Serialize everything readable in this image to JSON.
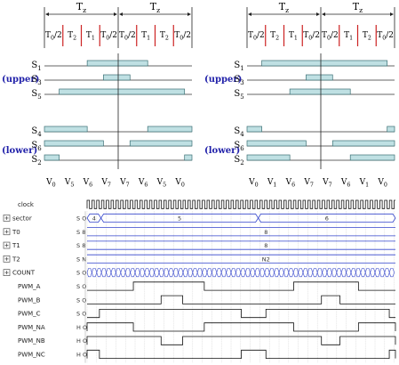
{
  "space_vector": {
    "period_label": "T",
    "period_sub": "z",
    "left": {
      "segments": [
        {
          "main": "T",
          "sub": "0",
          "tail": "/2",
          "red": false
        },
        {
          "main": "T",
          "sub": "2",
          "tail": "",
          "red": false
        },
        {
          "main": "T",
          "sub": "1",
          "tail": "",
          "red": false
        },
        {
          "main": "T",
          "sub": "0",
          "tail": "/2",
          "red": false
        },
        {
          "main": "T",
          "sub": "0",
          "tail": "/2",
          "red": false
        },
        {
          "main": "T",
          "sub": "1",
          "tail": "",
          "red": false
        },
        {
          "main": "T",
          "sub": "2",
          "tail": "",
          "red": false
        },
        {
          "main": "T",
          "sub": "0",
          "tail": "/2",
          "red": false
        }
      ],
      "upper_label": "(upper)",
      "lower_label": "(lower)",
      "upper_signals": [
        {
          "name": "S",
          "sub": "1",
          "high": [
            [
              0.29,
              0.7
            ]
          ]
        },
        {
          "name": "S",
          "sub": "3",
          "high": [
            [
              0.4,
              0.58
            ]
          ]
        },
        {
          "name": "S",
          "sub": "5",
          "high": [
            [
              0.1,
              0.95
            ]
          ]
        }
      ],
      "lower_signals": [
        {
          "name": "S",
          "sub": "4",
          "high": [
            [
              0,
              0.29
            ],
            [
              0.7,
              1
            ]
          ]
        },
        {
          "name": "S",
          "sub": "6",
          "high": [
            [
              0,
              0.4
            ],
            [
              0.58,
              1
            ]
          ]
        },
        {
          "name": "S",
          "sub": "2",
          "high": [
            [
              0,
              0.1
            ],
            [
              0.95,
              1
            ]
          ]
        }
      ],
      "vectors": [
        {
          "m": "V",
          "s": "0"
        },
        {
          "m": "V",
          "s": "5"
        },
        {
          "m": "V",
          "s": "6"
        },
        {
          "m": "V",
          "s": "7"
        },
        {
          "m": "V",
          "s": "7"
        },
        {
          "m": "V",
          "s": "6"
        },
        {
          "m": "V",
          "s": "5"
        },
        {
          "m": "V",
          "s": "0"
        }
      ]
    },
    "right": {
      "segments": [
        {
          "main": "T",
          "sub": "0",
          "tail": "/2",
          "red": false
        },
        {
          "main": "T",
          "sub": "2",
          "tail": "",
          "red": false
        },
        {
          "main": "T",
          "sub": "1",
          "tail": "",
          "red": false
        },
        {
          "main": "T",
          "sub": "0",
          "tail": "/2",
          "red": false
        },
        {
          "main": "T",
          "sub": "0",
          "tail": "/2",
          "red": false
        },
        {
          "main": "T",
          "sub": "1",
          "tail": "",
          "red": false
        },
        {
          "main": "T",
          "sub": "2",
          "tail": "",
          "red": false
        },
        {
          "main": "T",
          "sub": "0",
          "tail": "/2",
          "red": false
        }
      ],
      "upper_label": "(upper)",
      "lower_label": "(lower)",
      "upper_signals": [
        {
          "name": "S",
          "sub": "1",
          "high": [
            [
              0.1,
              0.95
            ]
          ]
        },
        {
          "name": "S",
          "sub": "3",
          "high": [
            [
              0.4,
              0.58
            ]
          ]
        },
        {
          "name": "S",
          "sub": "5",
          "high": [
            [
              0.29,
              0.7
            ]
          ]
        }
      ],
      "lower_signals": [
        {
          "name": "S",
          "sub": "4",
          "high": [
            [
              0,
              0.1
            ],
            [
              0.95,
              1
            ]
          ]
        },
        {
          "name": "S",
          "sub": "6",
          "high": [
            [
              0,
              0.4
            ],
            [
              0.58,
              1
            ]
          ]
        },
        {
          "name": "S",
          "sub": "2",
          "high": [
            [
              0,
              0.29
            ],
            [
              0.7,
              1
            ]
          ]
        }
      ],
      "vectors": [
        {
          "m": "V",
          "s": "0"
        },
        {
          "m": "V",
          "s": "1"
        },
        {
          "m": "V",
          "s": "6"
        },
        {
          "m": "V",
          "s": "7"
        },
        {
          "m": "V",
          "s": "7"
        },
        {
          "m": "V",
          "s": "6"
        },
        {
          "m": "V",
          "s": "1"
        },
        {
          "m": "V",
          "s": "0"
        }
      ]
    }
  },
  "waveform": {
    "rows": [
      {
        "label": "clock",
        "icon": false,
        "value": "",
        "type": "clock"
      },
      {
        "label": "sector",
        "icon": true,
        "value": "S O",
        "type": "bus",
        "segments": [
          {
            "from": 0,
            "to": 0.045,
            "text": "4"
          },
          {
            "from": 0.045,
            "to": 0.555,
            "text": "5"
          },
          {
            "from": 0.555,
            "to": 1,
            "text": "6"
          }
        ]
      },
      {
        "label": "T0",
        "icon": true,
        "value": "S 8",
        "type": "busconst",
        "text": "8"
      },
      {
        "label": "T1",
        "icon": true,
        "value": "S 8",
        "type": "busconst",
        "text": "8"
      },
      {
        "label": "T2",
        "icon": true,
        "value": "S N",
        "type": "busconst",
        "text": "N2"
      },
      {
        "label": "COUNT",
        "icon": true,
        "value": "S O",
        "type": "count"
      },
      {
        "label": "PWM_A",
        "icon": false,
        "value": "S O",
        "type": "digital",
        "high": [
          [
            0.15,
            0.38
          ],
          [
            0.67,
            0.88
          ]
        ]
      },
      {
        "label": "PWM_B",
        "icon": false,
        "value": "S O",
        "type": "digital",
        "high": [
          [
            0.24,
            0.31
          ],
          [
            0.76,
            0.82
          ]
        ]
      },
      {
        "label": "PWM_C",
        "icon": false,
        "value": "S O",
        "type": "digital",
        "high": [
          [
            0.04,
            0.5
          ],
          [
            0.58,
            0.98
          ]
        ]
      },
      {
        "label": "PWM_NA",
        "icon": false,
        "value": "H O",
        "type": "digital",
        "high": [
          [
            0,
            0.15
          ],
          [
            0.38,
            0.67
          ],
          [
            0.88,
            1
          ]
        ]
      },
      {
        "label": "PWM_NB",
        "icon": false,
        "value": "H O",
        "type": "digital",
        "high": [
          [
            0,
            0.24
          ],
          [
            0.31,
            0.76
          ],
          [
            0.82,
            1
          ]
        ]
      },
      {
        "label": "PWM_NC",
        "icon": false,
        "value": "H O",
        "type": "digital",
        "high": [
          [
            0,
            0.04
          ],
          [
            0.5,
            0.58
          ],
          [
            0.98,
            1
          ]
        ]
      }
    ]
  },
  "colors": {
    "bar_fill": "#bfe0e3",
    "bar_stroke": "#3a6f74",
    "grid": "#bbbbbb",
    "accent_blue": "#2222aa",
    "wave_blue": "#3344cc",
    "red_tick": "#cc2222"
  }
}
